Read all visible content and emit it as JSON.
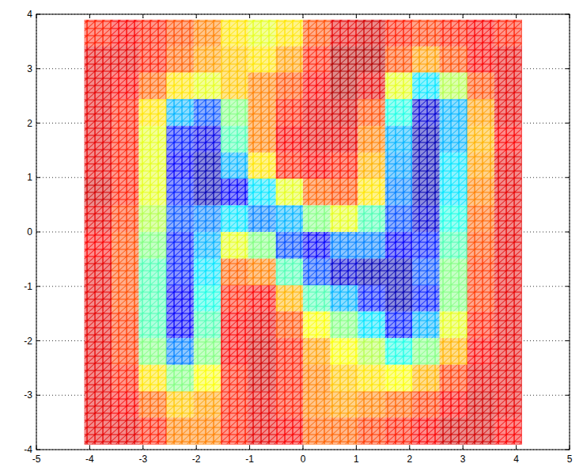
{
  "chart_data": {
    "type": "mesh",
    "xlim": [
      -5,
      5
    ],
    "ylim": [
      -4,
      4
    ],
    "xticks": [
      -5,
      -4,
      -3,
      -2,
      -1,
      0,
      1,
      2,
      3,
      4,
      5
    ],
    "yticks": [
      -4,
      -3,
      -2,
      -1,
      0,
      1,
      2,
      3,
      4
    ],
    "grid": true,
    "clim": [
      0,
      1
    ],
    "x": [
      -4.1,
      -3.59,
      -3.08,
      -2.56,
      -2.05,
      -1.54,
      -1.03,
      -0.51,
      0,
      0.51,
      1.03,
      1.54,
      2.05,
      2.56,
      3.08,
      3.59,
      4.1
    ],
    "y": [
      3.9,
      3.41,
      2.93,
      2.44,
      1.95,
      1.46,
      0.98,
      0.49,
      0,
      -0.49,
      -0.98,
      -1.46,
      -1.95,
      -2.44,
      -2.93,
      -3.41,
      -3.9
    ],
    "cells": [
      [
        0.85,
        0.88,
        0.85,
        0.8,
        0.75,
        0.65,
        0.6,
        0.65,
        0.8,
        0.9,
        0.92,
        0.85,
        0.82,
        0.85,
        0.88,
        0.85
      ],
      [
        0.9,
        0.9,
        0.85,
        0.78,
        0.72,
        0.68,
        0.65,
        0.72,
        0.85,
        0.95,
        0.95,
        0.8,
        0.72,
        0.8,
        0.88,
        0.9
      ],
      [
        0.9,
        0.88,
        0.78,
        0.65,
        0.6,
        0.68,
        0.75,
        0.8,
        0.88,
        0.95,
        0.9,
        0.6,
        0.35,
        0.55,
        0.8,
        0.9
      ],
      [
        0.9,
        0.85,
        0.65,
        0.3,
        0.2,
        0.5,
        0.75,
        0.85,
        0.9,
        0.92,
        0.8,
        0.4,
        0.08,
        0.3,
        0.72,
        0.9
      ],
      [
        0.9,
        0.85,
        0.6,
        0.15,
        0.1,
        0.45,
        0.75,
        0.88,
        0.9,
        0.9,
        0.75,
        0.3,
        0.05,
        0.3,
        0.7,
        0.88
      ],
      [
        0.9,
        0.85,
        0.6,
        0.12,
        0.05,
        0.3,
        0.65,
        0.85,
        0.88,
        0.85,
        0.7,
        0.28,
        0.05,
        0.35,
        0.72,
        0.9
      ],
      [
        0.92,
        0.85,
        0.6,
        0.15,
        0.05,
        0.12,
        0.35,
        0.6,
        0.78,
        0.8,
        0.65,
        0.25,
        0.05,
        0.35,
        0.75,
        0.9
      ],
      [
        0.9,
        0.82,
        0.55,
        0.2,
        0.25,
        0.35,
        0.25,
        0.3,
        0.5,
        0.6,
        0.45,
        0.2,
        0.08,
        0.4,
        0.78,
        0.9
      ],
      [
        0.88,
        0.8,
        0.5,
        0.15,
        0.3,
        0.6,
        0.5,
        0.2,
        0.12,
        0.25,
        0.25,
        0.12,
        0.15,
        0.45,
        0.8,
        0.9
      ],
      [
        0.9,
        0.8,
        0.45,
        0.15,
        0.35,
        0.78,
        0.75,
        0.45,
        0.2,
        0.08,
        0.05,
        0.05,
        0.2,
        0.5,
        0.82,
        0.9
      ],
      [
        0.9,
        0.8,
        0.45,
        0.12,
        0.4,
        0.85,
        0.88,
        0.7,
        0.45,
        0.3,
        0.15,
        0.05,
        0.15,
        0.5,
        0.82,
        0.9
      ],
      [
        0.9,
        0.82,
        0.45,
        0.12,
        0.45,
        0.88,
        0.9,
        0.8,
        0.62,
        0.5,
        0.35,
        0.15,
        0.3,
        0.6,
        0.85,
        0.9
      ],
      [
        0.9,
        0.82,
        0.5,
        0.25,
        0.5,
        0.88,
        0.92,
        0.85,
        0.72,
        0.62,
        0.55,
        0.4,
        0.5,
        0.7,
        0.88,
        0.9
      ],
      [
        0.9,
        0.85,
        0.65,
        0.5,
        0.62,
        0.85,
        0.92,
        0.85,
        0.75,
        0.68,
        0.65,
        0.62,
        0.7,
        0.82,
        0.9,
        0.9
      ],
      [
        0.9,
        0.88,
        0.78,
        0.68,
        0.72,
        0.85,
        0.9,
        0.85,
        0.75,
        0.72,
        0.75,
        0.78,
        0.82,
        0.88,
        0.92,
        0.9
      ],
      [
        0.9,
        0.9,
        0.85,
        0.75,
        0.75,
        0.85,
        0.9,
        0.88,
        0.78,
        0.78,
        0.82,
        0.85,
        0.88,
        0.92,
        0.92,
        0.88
      ]
    ]
  }
}
